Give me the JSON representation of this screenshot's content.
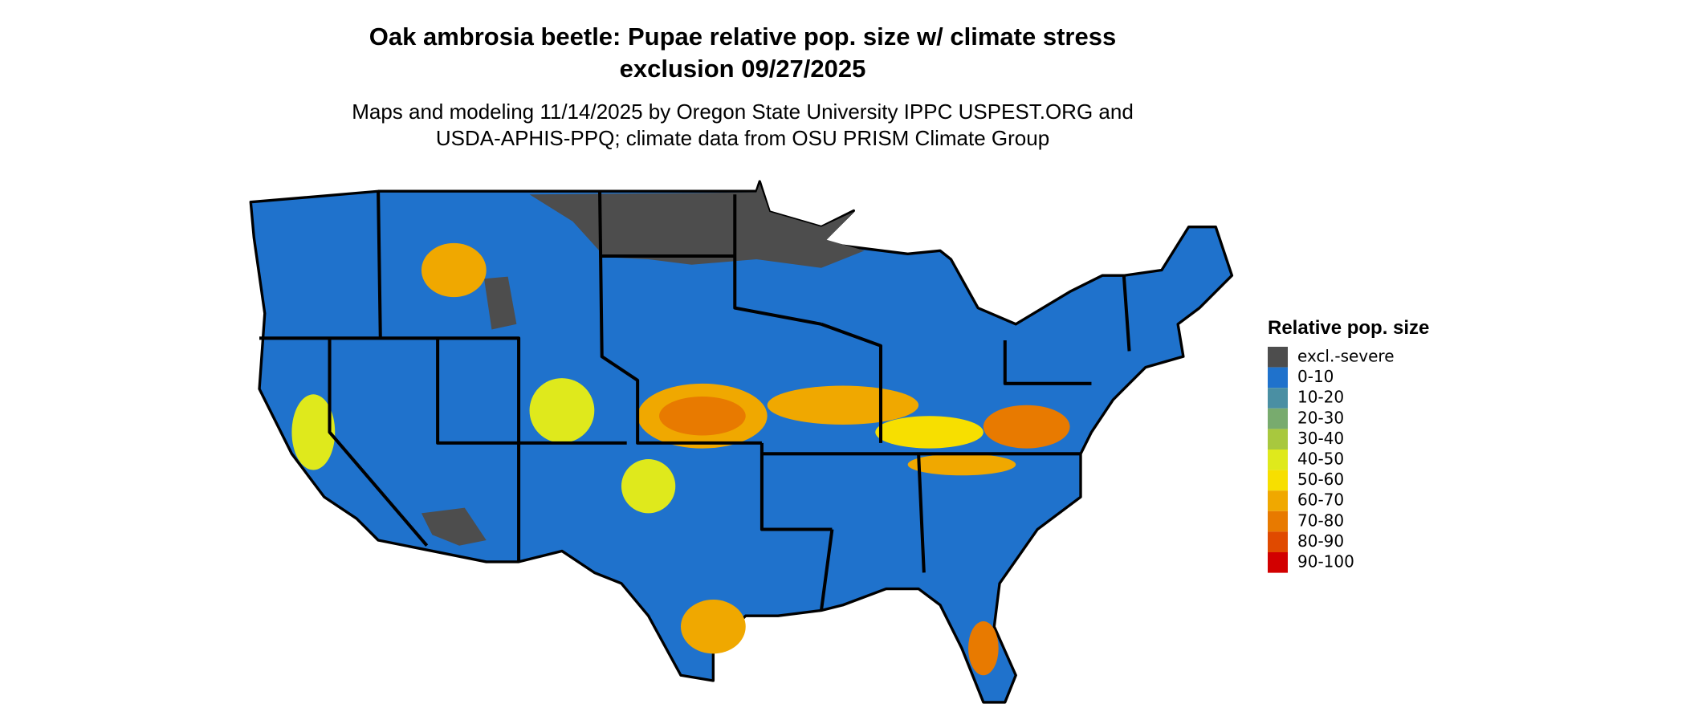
{
  "title": [
    "Oak ambrosia beetle: Pupae relative pop. size w/ climate stress",
    "exclusion 09/27/2025"
  ],
  "subtitle": [
    "Maps and modeling 11/14/2025 by Oregon State University IPPC USPEST.ORG and",
    "USDA-APHIS-PPQ; climate data from OSU PRISM Climate Group"
  ],
  "legend": {
    "title": "Relative pop. size",
    "items": [
      {
        "label": "excl.-severe",
        "color": "#4d4d4d"
      },
      {
        "label": "0-10",
        "color": "#1f72cc"
      },
      {
        "label": "10-20",
        "color": "#4a8fa3"
      },
      {
        "label": "20-30",
        "color": "#78ab6e"
      },
      {
        "label": "30-40",
        "color": "#a8c83e"
      },
      {
        "label": "40-50",
        "color": "#dfe91c"
      },
      {
        "label": "50-60",
        "color": "#f7df00"
      },
      {
        "label": "60-70",
        "color": "#f0a800"
      },
      {
        "label": "70-80",
        "color": "#e87a00"
      },
      {
        "label": "80-90",
        "color": "#e04a00"
      },
      {
        "label": "90-100",
        "color": "#d20000"
      }
    ]
  }
}
